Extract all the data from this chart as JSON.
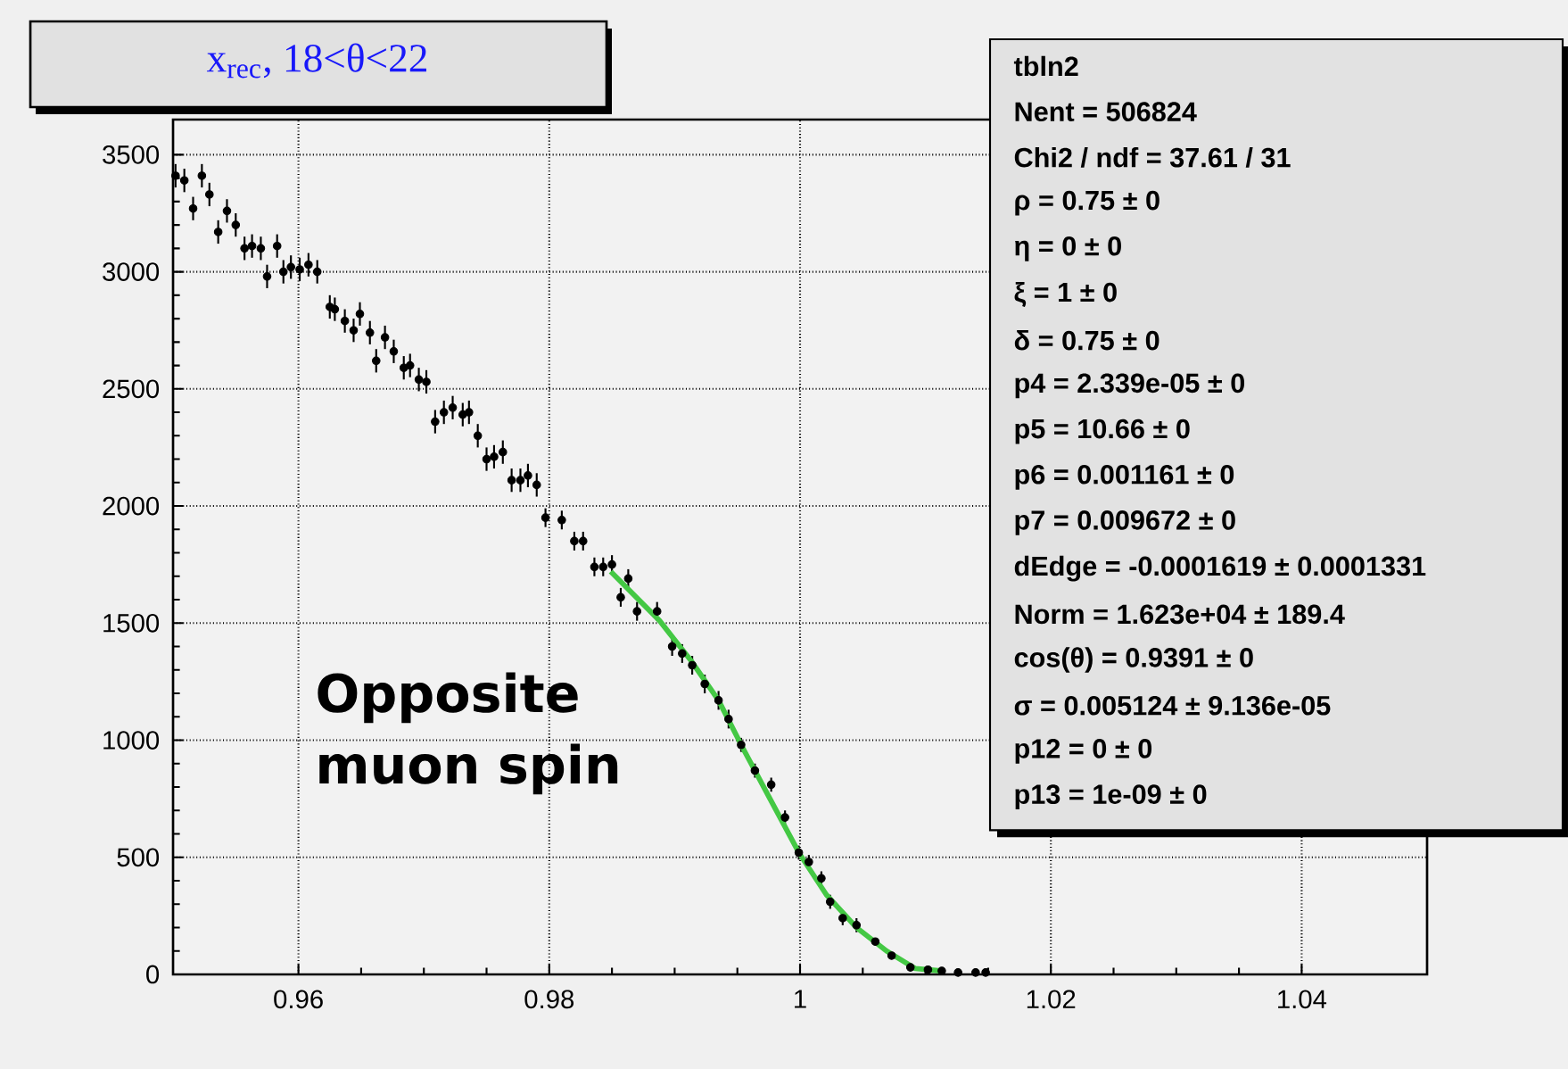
{
  "chart_data": {
    "type": "scatter",
    "title": "x$_{rec}$, 18<θ<22",
    "xlim": [
      0.95,
      1.05
    ],
    "ylim": [
      0,
      3650
    ],
    "xticks": [
      0.96,
      0.98,
      1,
      1.02,
      1.04
    ],
    "yticks": [
      0,
      500,
      1000,
      1500,
      2000,
      2500,
      3000,
      3500
    ],
    "grid": true,
    "marker": "circle",
    "series": [
      {
        "color": "#000000",
        "x": [
          0.9502,
          0.9509,
          0.9516,
          0.9523,
          0.9529,
          0.9536,
          0.9543,
          0.955,
          0.9557,
          0.9563,
          0.957,
          0.9575,
          0.9583,
          0.9588,
          0.9594,
          0.9601,
          0.9608,
          0.9615,
          0.9625,
          0.9629,
          0.9637,
          0.9644,
          0.9649,
          0.9657,
          0.9662,
          0.9669,
          0.9676,
          0.9684,
          0.9689,
          0.9696,
          0.9702,
          0.9709,
          0.9716,
          0.9723,
          0.9731,
          0.9736,
          0.9743,
          0.975,
          0.9756,
          0.9763,
          0.977,
          0.9777,
          0.9783,
          0.979,
          0.9797,
          0.981,
          0.982,
          0.9827,
          0.9836,
          0.9843,
          0.985,
          0.9857,
          0.9863,
          0.987,
          0.9886,
          0.9898,
          0.9906,
          0.9914,
          0.9924,
          0.9935,
          0.9943,
          0.9953,
          0.9964,
          0.9977,
          0.9988,
          0.9999,
          1.0007,
          1.0017,
          1.0024,
          1.0034,
          1.0045,
          1.006,
          1.0073,
          1.0088,
          1.0102,
          1.0113,
          1.0126,
          1.014,
          1.0148
        ],
        "values": [
          3410,
          3390,
          3270,
          3410,
          3330,
          3170,
          3260,
          3200,
          3100,
          3110,
          3100,
          2980,
          3110,
          3000,
          3020,
          3010,
          3030,
          3000,
          2850,
          2840,
          2790,
          2750,
          2820,
          2740,
          2620,
          2720,
          2660,
          2590,
          2600,
          2540,
          2530,
          2360,
          2400,
          2420,
          2390,
          2400,
          2300,
          2200,
          2210,
          2230,
          2110,
          2110,
          2130,
          2090,
          1950,
          1940,
          1850,
          1850,
          1740,
          1740,
          1750,
          1610,
          1690,
          1550,
          1550,
          1400,
          1370,
          1320,
          1240,
          1170,
          1090,
          980,
          870,
          810,
          670,
          520,
          480,
          410,
          310,
          240,
          210,
          140,
          80,
          30,
          20,
          15,
          8,
          8,
          8
        ],
        "errors": [
          50,
          50,
          50,
          50,
          50,
          50,
          50,
          50,
          50,
          50,
          50,
          50,
          50,
          50,
          50,
          50,
          50,
          50,
          50,
          50,
          50,
          50,
          50,
          50,
          50,
          50,
          50,
          50,
          50,
          50,
          50,
          50,
          50,
          50,
          50,
          50,
          50,
          50,
          50,
          50,
          50,
          50,
          50,
          50,
          40,
          40,
          40,
          40,
          40,
          40,
          40,
          40,
          40,
          40,
          40,
          40,
          40,
          40,
          40,
          40,
          40,
          30,
          30,
          30,
          30,
          30,
          30,
          30,
          30,
          30,
          30,
          15,
          15,
          15,
          15,
          15,
          15,
          15,
          15
        ]
      },
      {
        "type": "line",
        "color": "#44c844",
        "marker": "none",
        "x": [
          0.9849,
          0.9888,
          0.9913,
          0.9935,
          0.9955,
          0.9978,
          0.9999,
          1.0021,
          1.0045,
          1.0069,
          1.0092,
          1.0112
        ],
        "values": [
          1720,
          1510,
          1340,
          1170,
          960,
          730,
          520,
          340,
          200,
          100,
          25,
          15
        ]
      }
    ],
    "annotations": [
      "Opposite muon spin",
      "tbln2",
      "Nent = 506824",
      "Chi2 / ndf = 37.61 / 31",
      "ρ   =  0.75 ±    0",
      "η    =    0 ±    0",
      "ξ     =    1 ±    0",
      "δ  =  0.75 ±    0",
      "p4      = 2.339e-05 ±    0",
      "p5      = 10.66 ±    0",
      "p6      = 0.001161 ±    0",
      "p7      = 0.009672 ±    0",
      "dEdge   = -0.0001619  ± 0.0001331",
      "Norm    = 1.623e+04  ± 189.4",
      "cos(θ) = 0.9391 ±    0",
      "σ  = 0.005124  ± 9.136e-05",
      "p12     =    0 ±    0",
      "p13     = 1e-09 ±    0"
    ]
  }
}
